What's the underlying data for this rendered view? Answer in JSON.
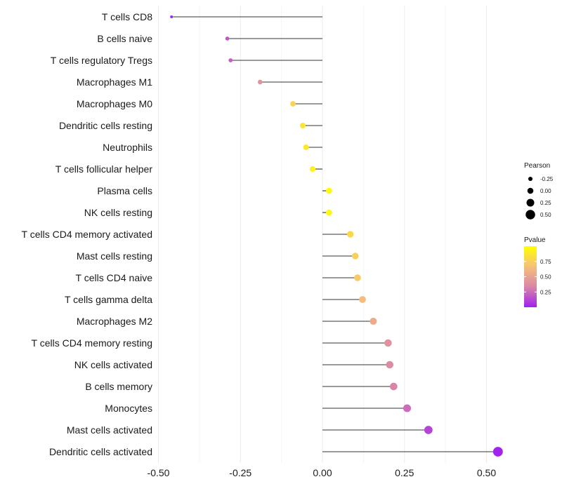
{
  "chart_data": {
    "type": "lollipop",
    "title": "",
    "xlabel": "",
    "ylabel": "",
    "xlim": [
      -0.53,
      0.55
    ],
    "x_ticks": [
      -0.5,
      -0.25,
      0.0,
      0.25,
      0.5
    ],
    "x_tick_labels": [
      "-0.50",
      "-0.25",
      "0.00",
      "0.25",
      "0.50"
    ],
    "categories": [
      "T cells CD8",
      "B cells naive",
      "T cells regulatory  Tregs",
      "Macrophages M1",
      "Macrophages M0",
      "Dendritic cells resting",
      "Neutrophils",
      "T cells follicular helper",
      "Plasma cells",
      "NK cells resting",
      "T cells CD4 memory activated",
      "Mast cells resting",
      "T cells CD4 naive",
      "T cells gamma delta",
      "Macrophages M2",
      "T cells CD4 memory resting",
      "NK cells activated",
      "B cells memory",
      "Monocytes",
      "Mast cells activated",
      "Dendritic cells activated"
    ],
    "pearson": [
      -0.46,
      -0.29,
      -0.28,
      -0.19,
      -0.09,
      -0.06,
      -0.05,
      -0.03,
      0.02,
      0.02,
      0.085,
      0.1,
      0.107,
      0.122,
      0.155,
      0.2,
      0.205,
      0.217,
      0.258,
      0.323,
      0.535
    ],
    "pvalue": [
      0.02,
      0.18,
      0.2,
      0.42,
      0.78,
      0.86,
      0.88,
      0.93,
      0.96,
      0.96,
      0.8,
      0.75,
      0.72,
      0.65,
      0.55,
      0.4,
      0.37,
      0.33,
      0.25,
      0.12,
      0.01
    ],
    "legend_size": {
      "title": "Pearson",
      "values": [
        -0.25,
        0.0,
        0.25,
        0.5
      ],
      "labels": [
        "-0.25",
        "0.00",
        "0.25",
        "0.50"
      ]
    },
    "legend_color": {
      "title": "Pvalue",
      "range": [
        0.0,
        1.0
      ],
      "ticks": [
        0.25,
        0.5,
        0.75
      ],
      "tick_labels": [
        "0.25",
        "0.50",
        "0.75"
      ],
      "colors": [
        "#a020f0",
        "#d986a8",
        "#f5c07a",
        "#ffff00"
      ]
    },
    "grid": true,
    "legend_position": "right"
  }
}
